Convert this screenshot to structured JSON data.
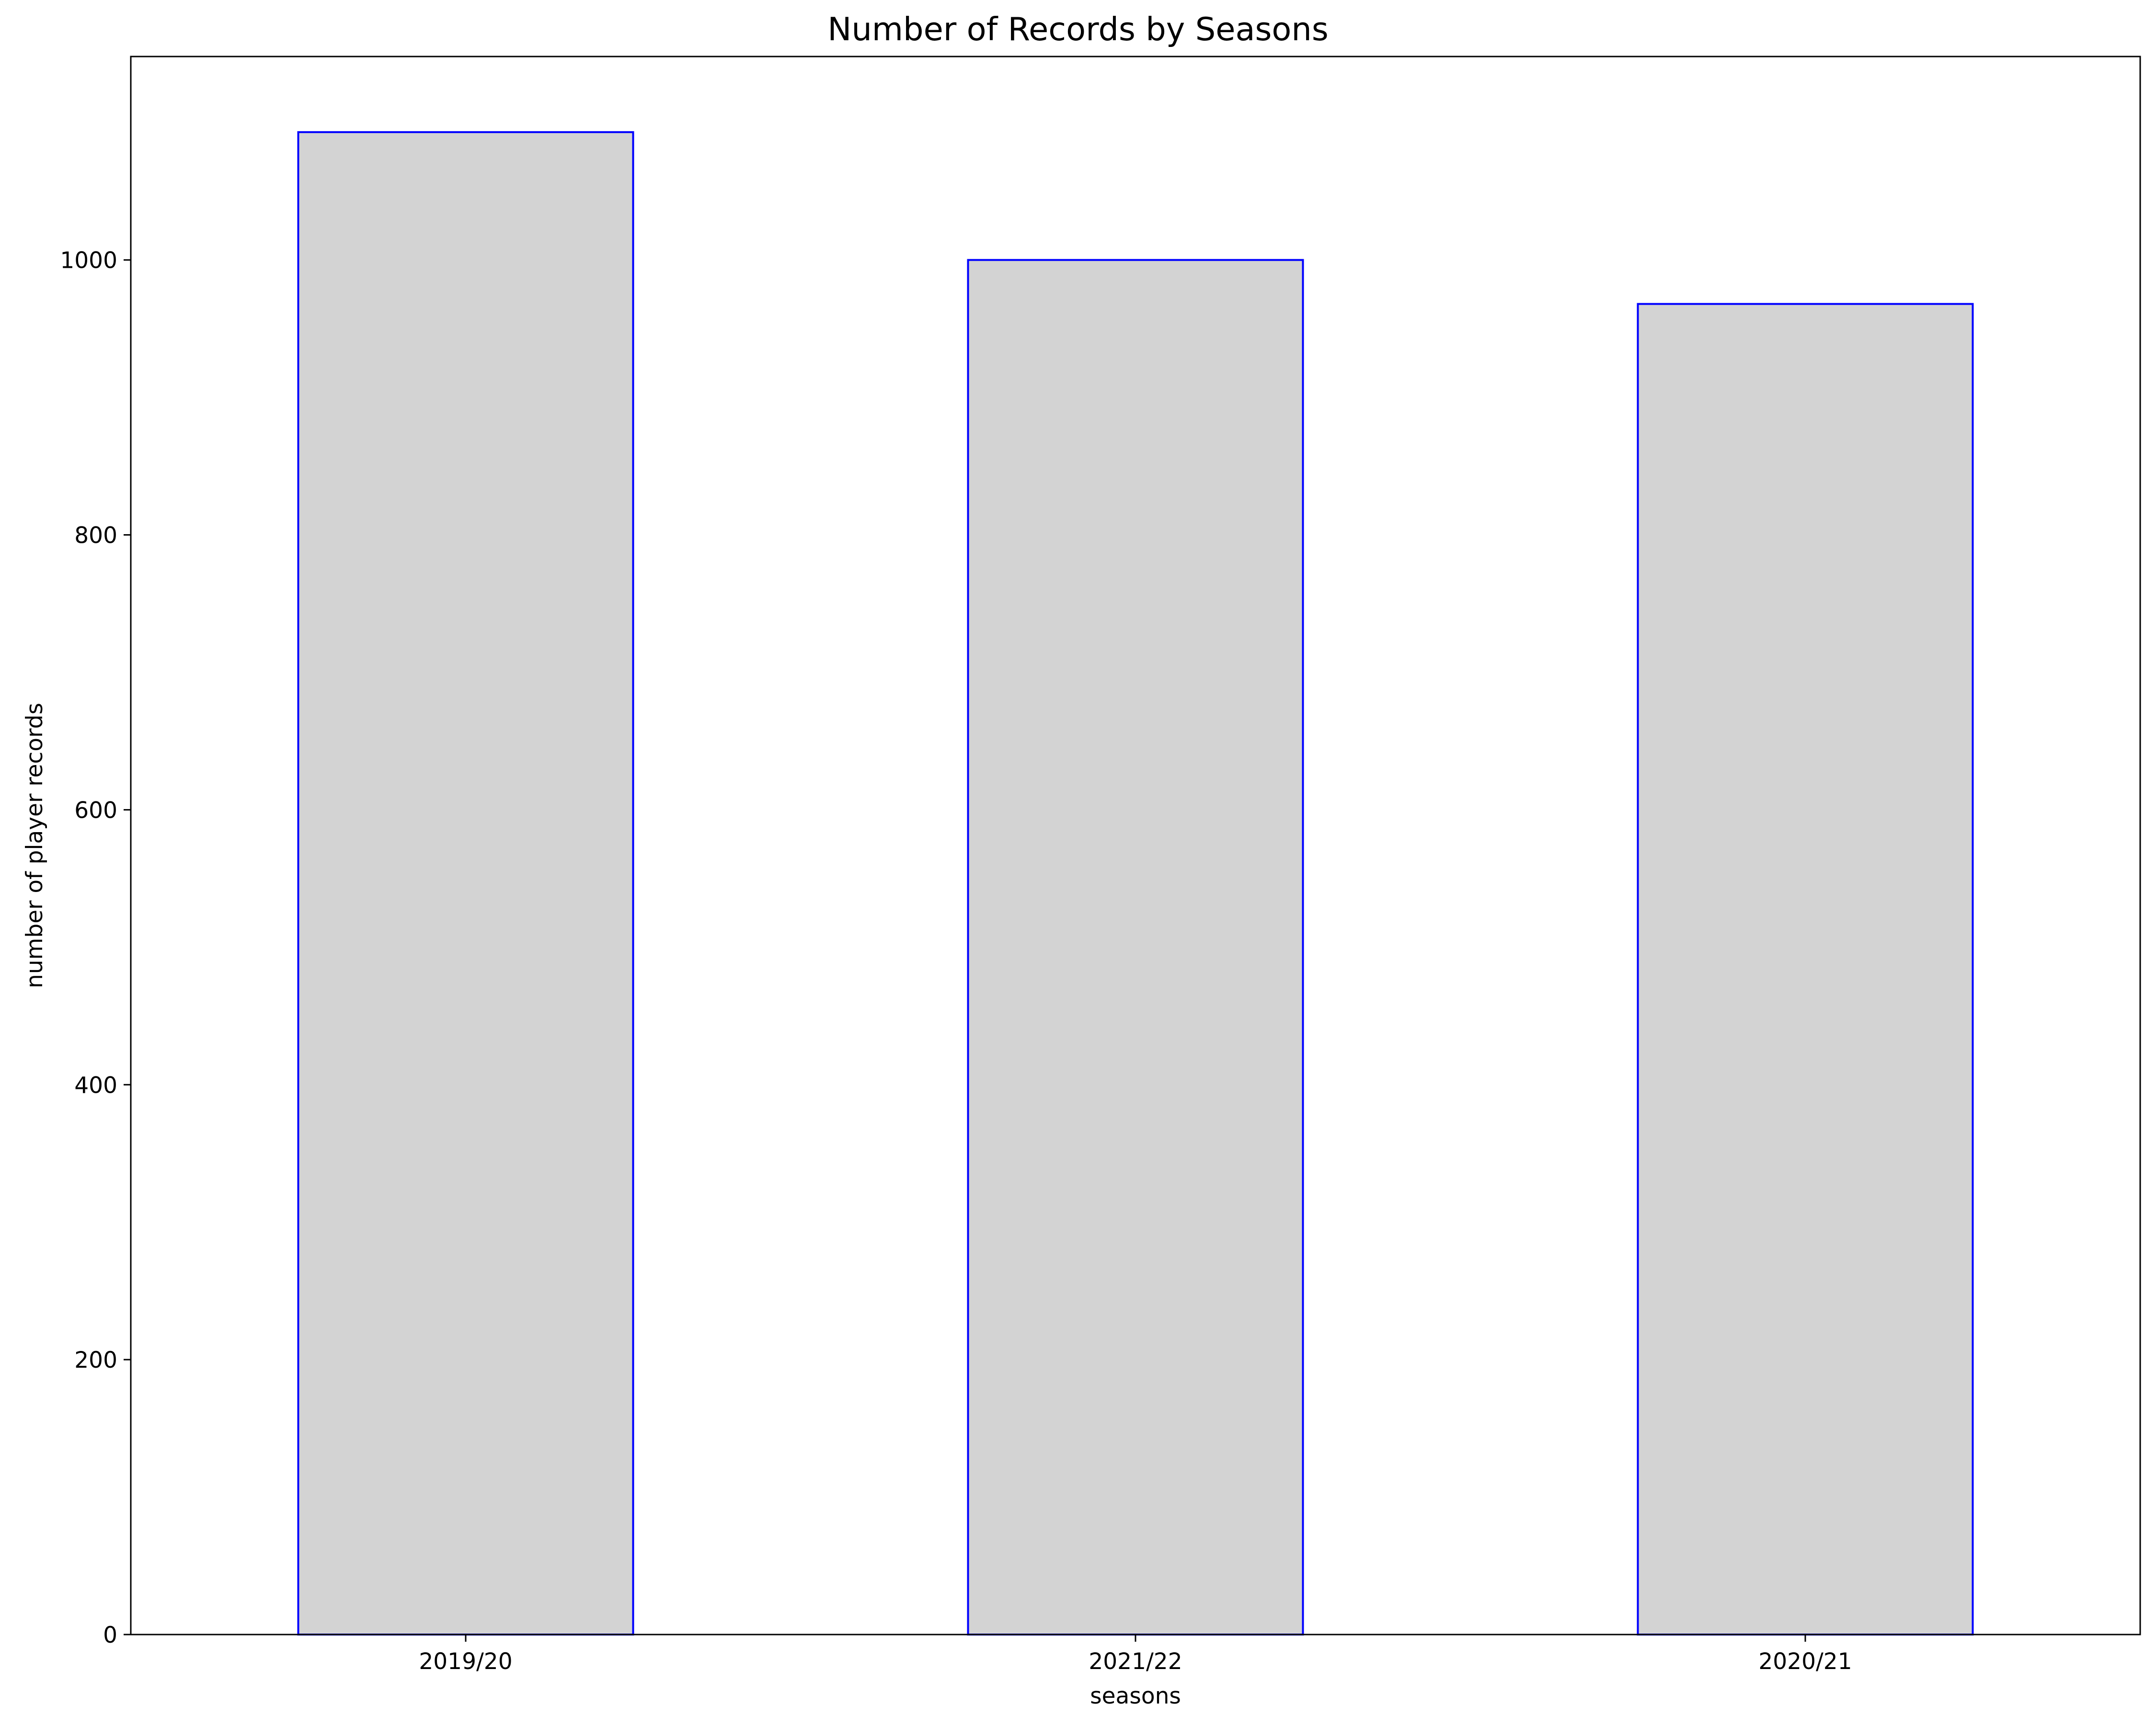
{
  "chart_data": {
    "type": "bar",
    "title": "Number of Records by Seasons",
    "xlabel": "seasons",
    "ylabel": "number of player records",
    "categories": [
      "2019/20",
      "2021/22",
      "2020/21"
    ],
    "values": [
      1093,
      1000,
      968
    ],
    "ylim": [
      0,
      1148
    ],
    "yticks": [
      0,
      200,
      400,
      600,
      800,
      1000
    ],
    "grid": false,
    "legend": "none",
    "bar_fill": "#d3d3d3",
    "bar_edge": "#0000ff"
  }
}
